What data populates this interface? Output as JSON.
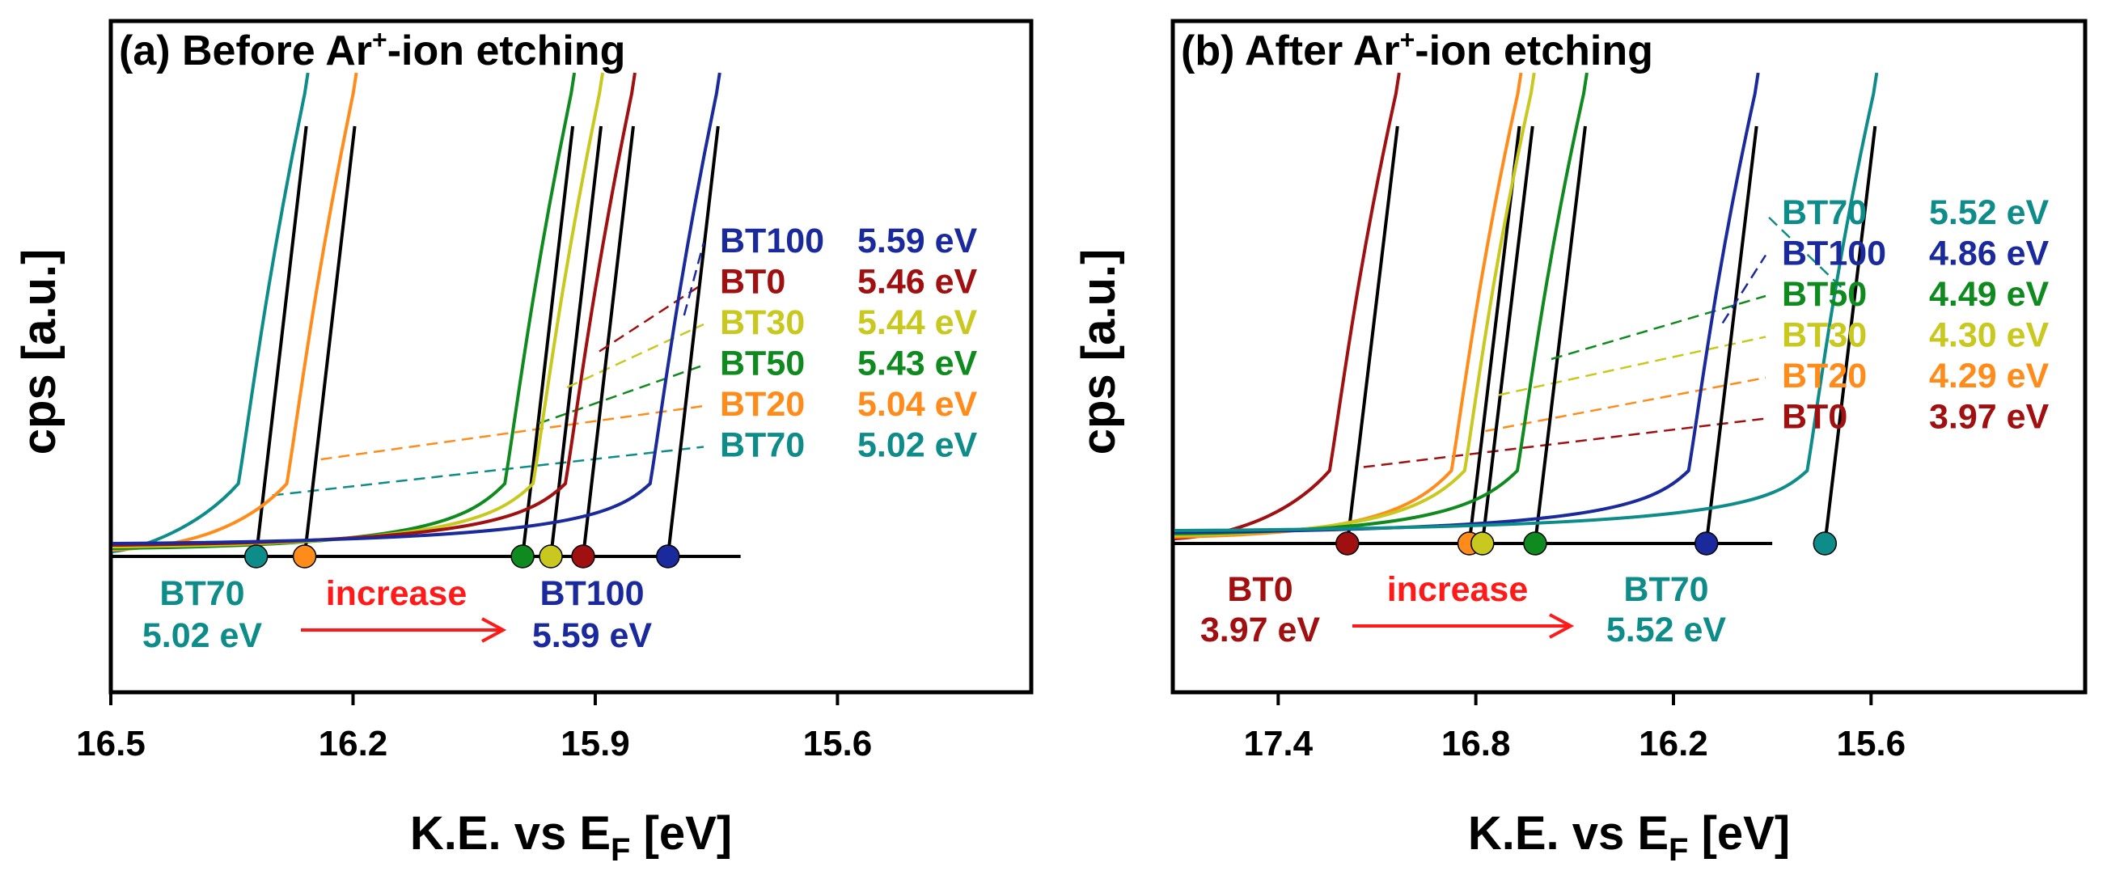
{
  "chart_data": [
    {
      "type": "line",
      "title": "(a) Before Ar+-ion etching",
      "title_parts": [
        "(a) Before Ar",
        "+",
        "-ion etching"
      ],
      "xlabel": "K.E. vs EF [eV]",
      "ylabel": "cps [a.u.]",
      "x_reversed": true,
      "xlim": [
        16.5,
        15.36
      ],
      "ylim": [
        -0.5,
        3.0
      ],
      "xticks": [
        16.5,
        16.2,
        15.9,
        15.6
      ],
      "xtick_labels": [
        "16.5",
        "16.2",
        "15.9",
        "15.6"
      ],
      "baseline_end": 15.72,
      "series": [
        {
          "name": "BT70",
          "label": "BT70",
          "wf_label": "5.02 eV",
          "onset": 16.32,
          "color": "#0e8c8a",
          "legend_row": 5,
          "dash_y": [
            0.33,
            0.48
          ]
        },
        {
          "name": "BT20",
          "label": "BT20",
          "wf_label": "5.04 eV",
          "onset": 16.26,
          "color": "#ff8c1a",
          "legend_row": 4,
          "dash_y": [
            0.53,
            0.75
          ]
        },
        {
          "name": "BT50",
          "label": "BT50",
          "wf_label": "5.43 eV",
          "onset": 15.99,
          "color": "#0f8a1e",
          "legend_row": 3,
          "dash_y": [
            0.82,
            1.0
          ]
        },
        {
          "name": "BT30",
          "label": "BT30",
          "wf_label": "5.44 eV",
          "onset": 15.955,
          "color": "#c8c81e",
          "legend_row": 2,
          "dash_y": [
            1.02,
            1.2
          ]
        },
        {
          "name": "BT0",
          "label": "BT0",
          "wf_label": "5.46 eV",
          "onset": 15.915,
          "color": "#a01010",
          "legend_row": 1,
          "dash_y": [
            1.4,
            1.55
          ]
        },
        {
          "name": "BT100",
          "label": "BT100",
          "wf_label": "5.59 eV",
          "onset": 15.81,
          "color": "#1a2a9c",
          "legend_row": 0,
          "dash_y": [
            1.65,
            1.72
          ]
        }
      ],
      "annotations": {
        "left_name": "BT70",
        "left_value": "5.02 eV",
        "left_color": "#0e8c8a",
        "middle": "increase",
        "right_name": "BT100",
        "right_value": "5.59 eV",
        "right_color": "#1a2a9c"
      }
    },
    {
      "type": "line",
      "title": "(b) After Ar+-ion etching",
      "title_parts": [
        "(b) After Ar",
        "+",
        "-ion etching"
      ],
      "xlabel": "K.E. vs EF [eV]",
      "ylabel": "cps [a.u.]",
      "x_reversed": true,
      "xlim": [
        17.72,
        14.95
      ],
      "ylim": [
        -0.5,
        3.0
      ],
      "xticks": [
        17.4,
        16.8,
        16.2,
        15.6
      ],
      "xtick_labels": [
        "17.4",
        "16.8",
        "16.2",
        "15.6"
      ],
      "baseline_end": 15.9,
      "series": [
        {
          "name": "BT0",
          "label": "BT0",
          "wf_label": "3.97 eV",
          "onset": 17.19,
          "color": "#a01010",
          "legend_row": 5,
          "dash_y": [
            0.4,
            0.62
          ]
        },
        {
          "name": "BT20",
          "label": "BT20",
          "wf_label": "4.29 eV",
          "onset": 16.82,
          "color": "#ff8c1a",
          "legend_row": 4,
          "dash_y": [
            0.78,
            0.9
          ]
        },
        {
          "name": "BT30",
          "label": "BT30",
          "wf_label": "4.30 eV",
          "onset": 16.78,
          "color": "#c8c81e",
          "legend_row": 3,
          "dash_y": [
            0.98,
            1.18
          ]
        },
        {
          "name": "BT50",
          "label": "BT50",
          "wf_label": "4.49 eV",
          "onset": 16.62,
          "color": "#0f8a1e",
          "legend_row": 2,
          "dash_y": [
            1.28,
            1.45
          ]
        },
        {
          "name": "BT100",
          "label": "BT100",
          "wf_label": "4.86 eV",
          "onset": 16.1,
          "color": "#1a2a9c",
          "legend_row": 1,
          "dash_y": [
            1.65,
            1.72
          ]
        },
        {
          "name": "BT70",
          "label": "BT70",
          "wf_label": "5.52 eV",
          "onset": 15.74,
          "color": "#0e8c8a",
          "legend_row": 0,
          "dash_y": [
            2.0,
            2.05
          ]
        }
      ],
      "annotations": {
        "left_name": "BT0",
        "left_value": "3.97 eV",
        "left_color": "#a01010",
        "middle": "increase",
        "right_name": "BT70",
        "right_value": "5.52 eV",
        "right_color": "#0e8c8a"
      }
    }
  ],
  "colors": {
    "arrow": "#ff1a1a",
    "axis": "#000000",
    "baseline": "#000000"
  }
}
